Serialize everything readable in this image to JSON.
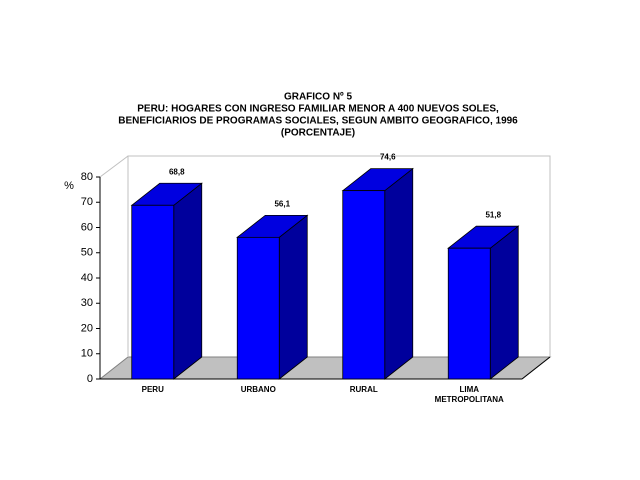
{
  "chart_data": {
    "type": "bar3d",
    "title": "GRAFICO Nº 5",
    "subtitle": [
      "PERU: HOGARES CON INGRESO FAMILIAR MENOR A 400 NUEVOS SOLES,",
      "BENEFICIARIOS DE PROGRAMAS SOCIALES, SEGUN AMBITO GEOGRAFICO, 1996",
      "(PORCENTAJE)"
    ],
    "y_label": "%",
    "categories": [
      "PERU",
      "URBANO",
      "RURAL",
      "LIMA METROPOLITANA"
    ],
    "values": [
      68.8,
      56.1,
      74.6,
      51.8
    ],
    "value_labels": [
      "68,8",
      "56,1",
      "74,6",
      "51,8"
    ],
    "color": "#0000ff",
    "ylim": [
      0,
      80
    ],
    "yticks": [
      0,
      10,
      20,
      30,
      40,
      50,
      60,
      70,
      80
    ],
    "grid": false
  }
}
